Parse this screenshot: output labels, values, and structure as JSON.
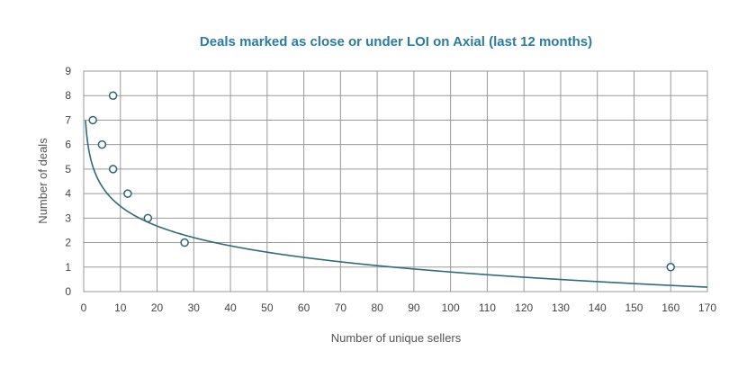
{
  "chart_data": {
    "type": "scatter",
    "title": "Deals marked as close or under LOI on Axial (last 12 months)",
    "xlabel": "Number of unique sellers",
    "ylabel": "Number of deals",
    "xlim": [
      0,
      170
    ],
    "ylim": [
      0,
      9
    ],
    "xticks": [
      0,
      10,
      20,
      30,
      40,
      50,
      60,
      70,
      80,
      90,
      100,
      110,
      120,
      130,
      140,
      150,
      160,
      170
    ],
    "yticks": [
      0,
      1,
      2,
      3,
      4,
      5,
      6,
      7,
      8,
      9
    ],
    "grid": true,
    "points": [
      {
        "x": 2.5,
        "y": 7
      },
      {
        "x": 5,
        "y": 6
      },
      {
        "x": 8,
        "y": 5
      },
      {
        "x": 8,
        "y": 8
      },
      {
        "x": 12,
        "y": 4
      },
      {
        "x": 17.5,
        "y": 3
      },
      {
        "x": 27.5,
        "y": 2
      },
      {
        "x": 160,
        "y": 1
      }
    ],
    "trendline": {
      "type": "logarithmic",
      "a": 6.17,
      "b": -1.166
    },
    "colors": {
      "marker": "#2b6478",
      "trend": "#2f6b7c",
      "title": "#2a7ca3",
      "grid": "#999999"
    }
  }
}
